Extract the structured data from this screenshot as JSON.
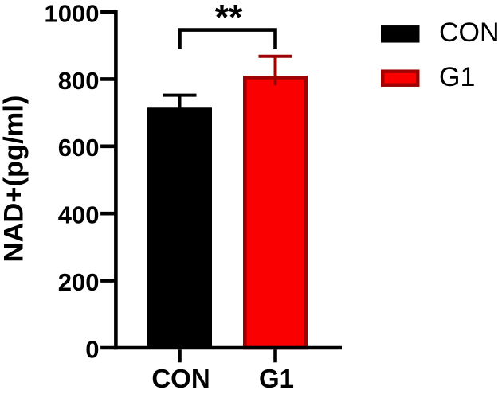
{
  "figure": {
    "background": "#ffffff",
    "description": "Bar chart comparing NAD+ levels (pg/ml) between CON and G1 groups with significance bracket"
  },
  "chart_data": {
    "type": "bar",
    "title": "",
    "xlabel": "",
    "ylabel": "NAD+(pg/ml)",
    "categories": [
      "CON",
      "G1"
    ],
    "series": [
      {
        "name": "NAD+",
        "values": [
          715,
          810
        ],
        "errors": [
          37,
          58
        ]
      }
    ],
    "ylim": [
      0,
      1000
    ],
    "yticks": [
      0,
      200,
      400,
      600,
      800,
      1000
    ],
    "grid": false,
    "bar_styles": [
      {
        "category": "CON",
        "fill": "#000000",
        "stroke": "#000000",
        "error_color": "#000000"
      },
      {
        "category": "G1",
        "fill": "#fa0000",
        "stroke": "#9e0202",
        "error_color": "#9e0202"
      }
    ],
    "legend": {
      "position": "top-right",
      "items": [
        {
          "label": "CON",
          "fill": "#000000",
          "stroke": "#000000"
        },
        {
          "label": "G1",
          "fill": "#fa0000",
          "stroke": "#9e0202"
        }
      ]
    },
    "significance": {
      "label": "**",
      "between": [
        "CON",
        "G1"
      ]
    },
    "axis_color": "#000000",
    "text_color": "#000000"
  }
}
